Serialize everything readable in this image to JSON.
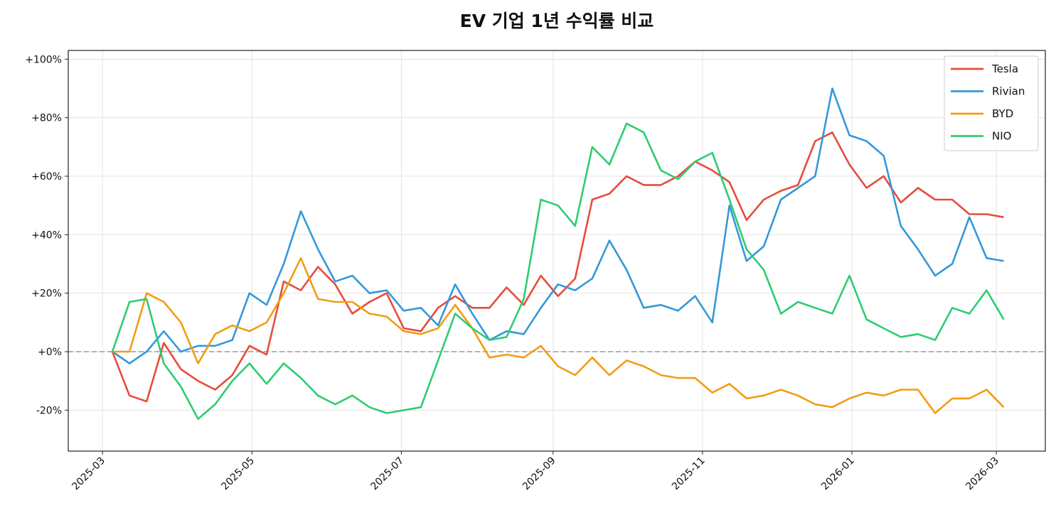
{
  "chart_data": {
    "type": "line",
    "title": "EV 기업 1년 수익률 비교",
    "xlabel": "",
    "ylabel": "",
    "xlim": [
      "2025-02-15",
      "2026-03-21"
    ],
    "ylim": [
      -34,
      103
    ],
    "grid": true,
    "legend_position": "top-right",
    "reference_line": {
      "y": 0,
      "style": "dashed",
      "color": "#aaaaaa"
    },
    "x_ticks": [
      "2025-03",
      "2025-05",
      "2025-07",
      "2025-09",
      "2025-11",
      "2026-01",
      "2026-03"
    ],
    "y_ticks": [
      -20,
      0,
      20,
      40,
      60,
      80,
      100
    ],
    "y_tick_labels": [
      "-20%",
      "+0%",
      "+20%",
      "+40%",
      "+60%",
      "+80%",
      "+100%"
    ],
    "x": [
      "2025-03-05",
      "2025-03-12",
      "2025-03-19",
      "2025-03-26",
      "2025-04-02",
      "2025-04-09",
      "2025-04-16",
      "2025-04-23",
      "2025-04-30",
      "2025-05-07",
      "2025-05-14",
      "2025-05-21",
      "2025-05-28",
      "2025-06-04",
      "2025-06-11",
      "2025-06-18",
      "2025-06-25",
      "2025-07-02",
      "2025-07-09",
      "2025-07-16",
      "2025-07-23",
      "2025-07-30",
      "2025-08-06",
      "2025-08-13",
      "2025-08-20",
      "2025-08-27",
      "2025-09-03",
      "2025-09-10",
      "2025-09-17",
      "2025-09-24",
      "2025-10-01",
      "2025-10-08",
      "2025-10-15",
      "2025-10-22",
      "2025-10-29",
      "2025-11-05",
      "2025-11-12",
      "2025-11-19",
      "2025-11-26",
      "2025-12-03",
      "2025-12-10",
      "2025-12-17",
      "2025-12-24",
      "2025-12-31",
      "2026-01-07",
      "2026-01-14",
      "2026-01-21",
      "2026-01-28",
      "2026-02-04",
      "2026-02-11",
      "2026-02-18",
      "2026-02-25",
      "2026-03-04"
    ],
    "series": [
      {
        "name": "Tesla",
        "color": "#e74c3c",
        "values": [
          0,
          -15,
          -17,
          3,
          -6,
          -10,
          -13,
          -8,
          2,
          -1,
          24,
          21,
          29,
          23,
          13,
          17,
          20,
          8,
          7,
          15,
          19,
          15,
          15,
          22,
          16,
          26,
          19,
          25,
          52,
          54,
          60,
          57,
          57,
          60,
          65,
          62,
          58,
          45,
          52,
          55,
          57,
          72,
          75,
          64,
          56,
          60,
          51,
          56,
          52,
          52,
          47,
          47,
          46
        ]
      },
      {
        "name": "Rivian",
        "color": "#3498db",
        "values": [
          0,
          -4,
          0,
          7,
          0,
          2,
          2,
          4,
          20,
          16,
          30,
          48,
          35,
          24,
          26,
          20,
          21,
          14,
          15,
          9,
          23,
          13,
          4,
          7,
          6,
          15,
          23,
          21,
          25,
          38,
          28,
          15,
          16,
          14,
          19,
          10,
          50,
          31,
          36,
          52,
          56,
          60,
          90,
          74,
          72,
          67,
          43,
          35,
          26,
          30,
          46,
          32,
          31
        ]
      },
      {
        "name": "BYD",
        "color": "#f39c12",
        "values": [
          0,
          0,
          20,
          17,
          10,
          -4,
          6,
          9,
          7,
          10,
          20,
          32,
          18,
          17,
          17,
          13,
          12,
          7,
          6,
          8,
          16,
          8,
          -2,
          -1,
          -2,
          2,
          -5,
          -8,
          -2,
          -8,
          -3,
          -5,
          -8,
          -9,
          -9,
          -14,
          -11,
          -16,
          -15,
          -13,
          -15,
          -18,
          -19,
          -16,
          -14,
          -15,
          -13,
          -13,
          -21,
          -16,
          -16,
          -13,
          -19
        ]
      },
      {
        "name": "NIO",
        "color": "#2ecc71",
        "values": [
          0,
          17,
          18,
          -4,
          -12,
          -23,
          -18,
          -10,
          -4,
          -11,
          -4,
          -9,
          -15,
          -18,
          -15,
          -19,
          -21,
          -20,
          -19,
          -3,
          13,
          8,
          4,
          5,
          18,
          52,
          50,
          43,
          70,
          64,
          78,
          75,
          62,
          59,
          65,
          68,
          52,
          35,
          28,
          13,
          17,
          15,
          13,
          26,
          11,
          8,
          5,
          6,
          4,
          15,
          13,
          21,
          11
        ]
      }
    ]
  }
}
